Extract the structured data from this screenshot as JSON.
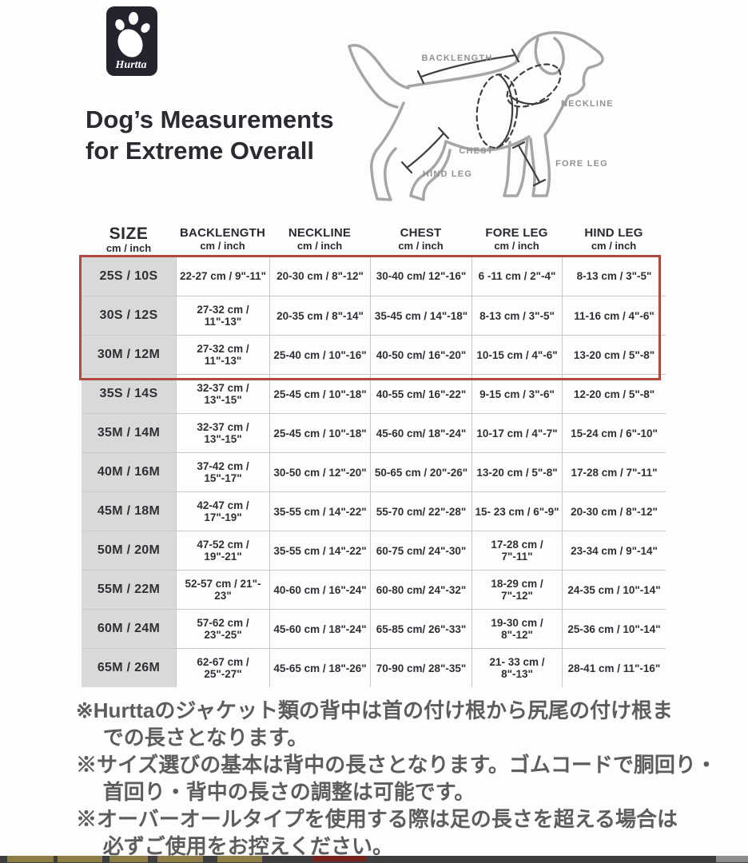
{
  "logo": {
    "brand": "Hurtta"
  },
  "title": {
    "line1": "Dog’s Measurements",
    "line2": "for Extreme Overall"
  },
  "diagram": {
    "labels": {
      "backlength": "BACKLENGTH",
      "neckline": "NECKLINE",
      "chest": "CHEST",
      "fore_leg": "FORE LEG",
      "hind_leg": "HIND LEG"
    }
  },
  "table": {
    "columns": [
      {
        "name": "SIZE",
        "unit": "cm / inch"
      },
      {
        "name": "BACKLENGTH",
        "unit": "cm / inch"
      },
      {
        "name": "NECKLINE",
        "unit": "cm / inch"
      },
      {
        "name": "CHEST",
        "unit": "cm / inch"
      },
      {
        "name": "FORE LEG",
        "unit": "cm / inch"
      },
      {
        "name": "HIND LEG",
        "unit": "cm / inch"
      }
    ],
    "rows": [
      {
        "size": "25S / 10S",
        "backlength": "22-27 cm / 9\"-11\"",
        "neckline": "20-30 cm / 8\"-12\"",
        "chest": "30-40 cm/ 12\"-16\"",
        "fore_leg": "6 -11 cm / 2\"-4\"",
        "hind_leg": "8-13 cm / 3\"-5\""
      },
      {
        "size": "30S / 12S",
        "backlength": "27-32 cm / 11\"-13\"",
        "neckline": "20-35 cm / 8\"-14\"",
        "chest": "35-45 cm / 14\"-18\"",
        "fore_leg": "8-13 cm / 3\"-5\"",
        "hind_leg": "11-16 cm / 4\"-6\""
      },
      {
        "size": "30M / 12M",
        "backlength": "27-32 cm / 11\"-13\"",
        "neckline": "25-40 cm / 10\"-16\"",
        "chest": "40-50 cm/ 16\"-20\"",
        "fore_leg": "10-15 cm / 4\"-6\"",
        "hind_leg": "13-20 cm / 5\"-8\""
      },
      {
        "size": "35S / 14S",
        "backlength": "32-37 cm / 13\"-15\"",
        "neckline": "25-45 cm / 10\"-18\"",
        "chest": "40-55 cm/ 16\"-22\"",
        "fore_leg": "9-15 cm / 3\"-6\"",
        "hind_leg": "12-20 cm / 5\"-8\""
      },
      {
        "size": "35M / 14M",
        "backlength": "32-37 cm / 13\"-15\"",
        "neckline": "25-45 cm / 10\"-18\"",
        "chest": "45-60 cm/ 18\"-24\"",
        "fore_leg": "10-17 cm / 4\"-7\"",
        "hind_leg": "15-24 cm / 6\"-10\""
      },
      {
        "size": "40M / 16M",
        "backlength": "37-42 cm / 15\"-17\"",
        "neckline": "30-50 cm / 12\"-20\"",
        "chest": "50-65 cm / 20\"-26\"",
        "fore_leg": "13-20 cm / 5\"-8\"",
        "hind_leg": "17-28 cm / 7\"-11\""
      },
      {
        "size": "45M / 18M",
        "backlength": "42-47 cm / 17\"-19\"",
        "neckline": "35-55 cm / 14\"-22\"",
        "chest": "55-70 cm/ 22\"-28\"",
        "fore_leg": "15- 23 cm / 6\"-9\"",
        "hind_leg": "20-30 cm / 8\"-12\""
      },
      {
        "size": "50M / 20M",
        "backlength": "47-52 cm / 19\"-21\"",
        "neckline": "35-55 cm / 14\"-22\"",
        "chest": "60-75 cm/ 24\"-30\"",
        "fore_leg": "17-28 cm / 7\"-11\"",
        "hind_leg": "23-34 cm / 9\"-14\""
      },
      {
        "size": "55M / 22M",
        "backlength": "52-57 cm / 21\"- 23\"",
        "neckline": "40-60 cm / 16\"-24\"",
        "chest": "60-80 cm/ 24\"-32\"",
        "fore_leg": "18-29 cm / 7\"-12\"",
        "hind_leg": "24-35 cm / 10\"-14\""
      },
      {
        "size": "60M / 24M",
        "backlength": "57-62 cm / 23\"-25\"",
        "neckline": "45-60 cm / 18\"-24\"",
        "chest": "65-85 cm/ 26\"-33\"",
        "fore_leg": "19-30 cm / 8\"-12\"",
        "hind_leg": "25-36 cm / 10\"-14\""
      },
      {
        "size": "65M / 26M",
        "backlength": "62-67 cm / 25\"-27\"",
        "neckline": "45-65 cm / 18\"-26\"",
        "chest": "70-90 cm/ 28\"-35\"",
        "fore_leg": "21- 33 cm / 8\"-13\"",
        "hind_leg": "28-41 cm / 11\"-16\""
      }
    ],
    "highlighted_sizes": [
      "25S / 10S",
      "30S / 12S",
      "30M / 12M"
    ]
  },
  "notes": [
    {
      "text": "※Hurttaのジャケット類の背中は首の付け根から尻尾の付け根までの長さとなります。",
      "lines": [
        "※Hurttaのジャケット類の背中は首の付け根から尻尾の付け根ま",
        "での長さとなります。"
      ]
    },
    {
      "text": "※サイズ選びの基本は背中の長さとなります。ゴムコードで胴回り・首回り・背中の長さの調整は可能です。",
      "lines": [
        "※サイズ選びの基本は背中の長さとなります。ゴムコードで胴回り・",
        "首回り・背中の長さの調整は可能です。"
      ]
    },
    {
      "text": "※オーバーオールタイプを使用する際は足の長さを超える場合は必ずご使用をお控えください。",
      "lines": [
        "※オーバーオールタイプを使用する際は足の長さを超える場合は",
        "必ずご使用をお控えください。"
      ]
    }
  ],
  "colors": {
    "highlight_border": "#b2493f",
    "size_column_bg": "#d9d9d9",
    "grid_line": "#c9c9c9",
    "logo_bg": "#26232e",
    "text_dark": "#2b2a31",
    "note_text": "#5d5d5d",
    "diagram_outline": "#a6a6a6",
    "diagram_annotation": "#3e3e3e"
  }
}
